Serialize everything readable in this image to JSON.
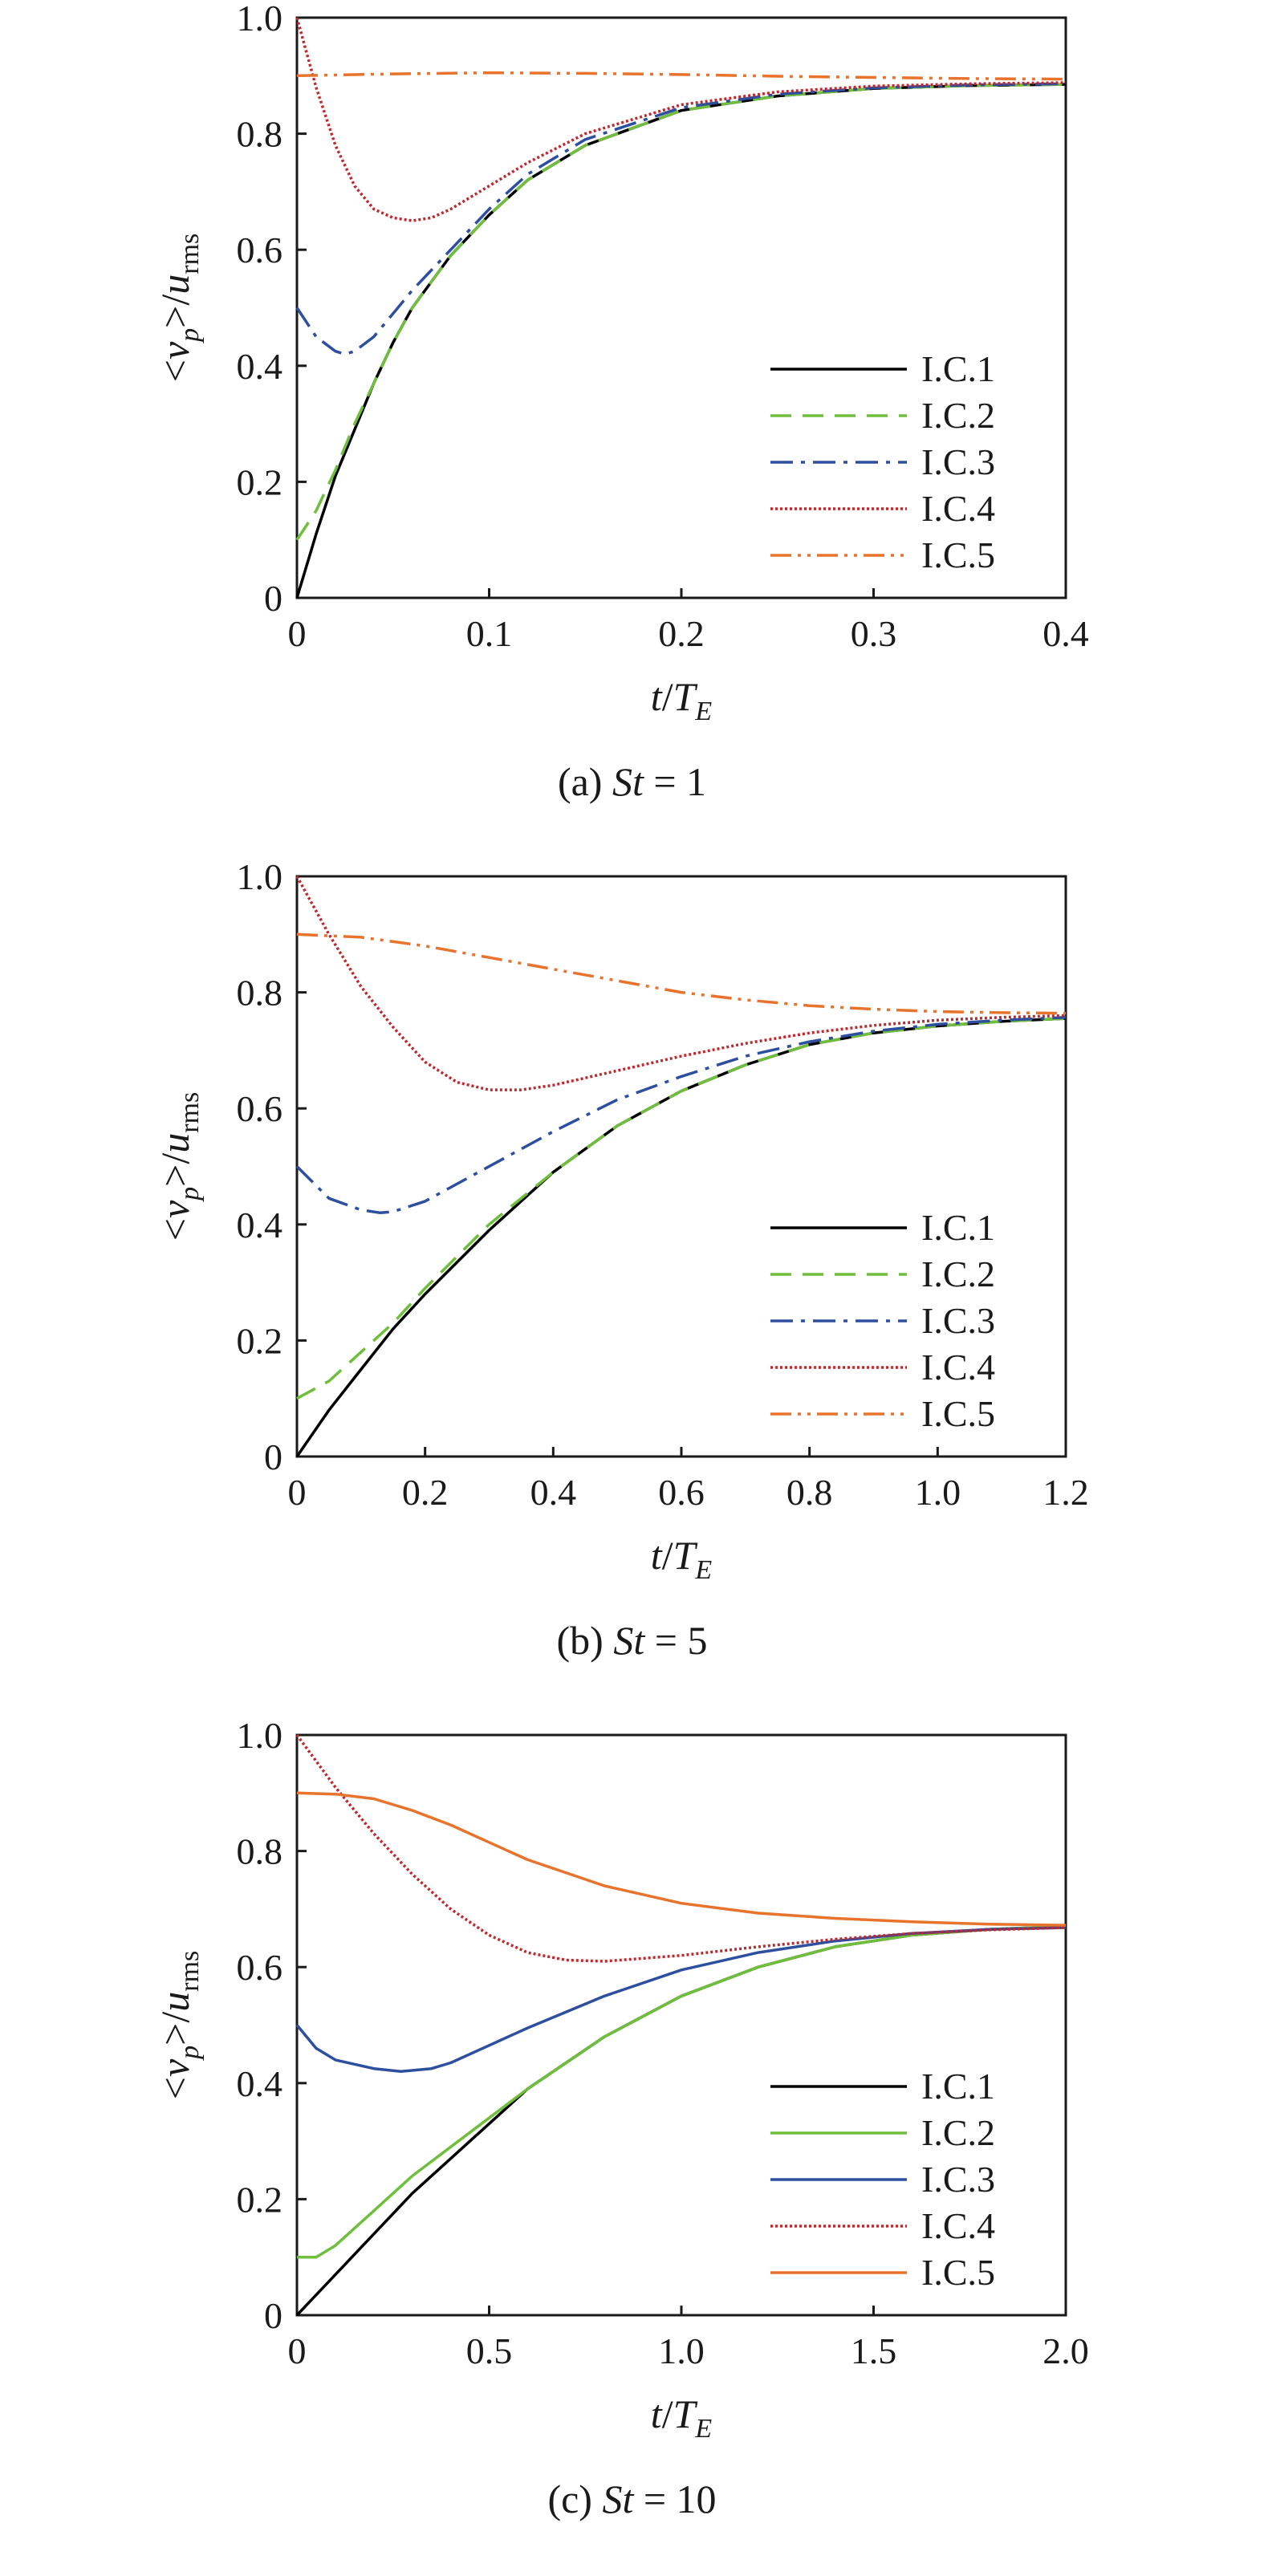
{
  "chart_data": [
    {
      "type": "line",
      "caption_prefix": "(a) ",
      "caption_var": "St",
      "caption_value": " = 1",
      "xlabel_var": "t",
      "xlabel_den": "T",
      "xlabel_sub": "E",
      "ylabel_var": "v",
      "ylabel_var_sub": "p",
      "ylabel_den": "u",
      "ylabel_den_sub": "rms",
      "xlim": [
        0,
        0.4
      ],
      "ylim": [
        0,
        1.0
      ],
      "xticks": [
        "0",
        "0.1",
        "0.2",
        "0.3",
        "0.4"
      ],
      "yticks": [
        "0",
        "0.2",
        "0.4",
        "0.6",
        "0.8",
        "1.0"
      ],
      "legend_position": "lower-right",
      "series": [
        {
          "name": "I.C.1",
          "color": "#000000",
          "style": "solid",
          "x": [
            0,
            0.01,
            0.02,
            0.03,
            0.04,
            0.05,
            0.06,
            0.08,
            0.1,
            0.12,
            0.15,
            0.2,
            0.25,
            0.3,
            0.35,
            0.4
          ],
          "y": [
            0,
            0.11,
            0.21,
            0.29,
            0.37,
            0.44,
            0.5,
            0.59,
            0.66,
            0.72,
            0.78,
            0.84,
            0.865,
            0.878,
            0.883,
            0.885
          ]
        },
        {
          "name": "I.C.2",
          "color": "#6fbf3c",
          "style": "dashed",
          "x": [
            0,
            0.01,
            0.02,
            0.03,
            0.04,
            0.05,
            0.06,
            0.08,
            0.1,
            0.12,
            0.15,
            0.2,
            0.25,
            0.3,
            0.35,
            0.4
          ],
          "y": [
            0.1,
            0.15,
            0.22,
            0.3,
            0.37,
            0.44,
            0.5,
            0.59,
            0.66,
            0.72,
            0.78,
            0.84,
            0.865,
            0.878,
            0.883,
            0.885
          ]
        },
        {
          "name": "I.C.3",
          "color": "#2e4fa0",
          "style": "dashdot",
          "x": [
            0,
            0.01,
            0.02,
            0.025,
            0.03,
            0.04,
            0.05,
            0.06,
            0.08,
            0.1,
            0.12,
            0.15,
            0.2,
            0.25,
            0.3,
            0.35,
            0.4
          ],
          "y": [
            0.5,
            0.45,
            0.425,
            0.42,
            0.425,
            0.45,
            0.49,
            0.53,
            0.6,
            0.67,
            0.73,
            0.79,
            0.845,
            0.868,
            0.879,
            0.884,
            0.886
          ]
        },
        {
          "name": "I.C.4",
          "color": "#c0282e",
          "style": "dotted",
          "x": [
            0,
            0.01,
            0.02,
            0.03,
            0.04,
            0.05,
            0.06,
            0.07,
            0.08,
            0.1,
            0.12,
            0.15,
            0.2,
            0.25,
            0.3,
            0.35,
            0.4
          ],
          "y": [
            1.0,
            0.88,
            0.78,
            0.71,
            0.67,
            0.655,
            0.65,
            0.655,
            0.67,
            0.71,
            0.75,
            0.8,
            0.85,
            0.872,
            0.882,
            0.886,
            0.888
          ]
        },
        {
          "name": "I.C.5",
          "color": "#e8732d",
          "style": "dashdotdot",
          "x": [
            0,
            0.05,
            0.1,
            0.15,
            0.2,
            0.25,
            0.3,
            0.35,
            0.4
          ],
          "y": [
            0.9,
            0.903,
            0.905,
            0.904,
            0.902,
            0.899,
            0.897,
            0.895,
            0.894
          ]
        }
      ]
    },
    {
      "type": "line",
      "caption_prefix": "(b) ",
      "caption_var": "St",
      "caption_value": " = 5",
      "xlabel_var": "t",
      "xlabel_den": "T",
      "xlabel_sub": "E",
      "ylabel_var": "v",
      "ylabel_var_sub": "p",
      "ylabel_den": "u",
      "ylabel_den_sub": "rms",
      "xlim": [
        0,
        1.2
      ],
      "ylim": [
        0,
        1.0
      ],
      "xticks": [
        "0",
        "0.2",
        "0.4",
        "0.6",
        "0.8",
        "1.0",
        "1.2"
      ],
      "yticks": [
        "0",
        "0.2",
        "0.4",
        "0.6",
        "0.8",
        "1.0"
      ],
      "legend_position": "lower-right",
      "series": [
        {
          "name": "I.C.1",
          "color": "#000000",
          "style": "solid",
          "x": [
            0,
            0.05,
            0.1,
            0.15,
            0.2,
            0.3,
            0.4,
            0.5,
            0.6,
            0.7,
            0.8,
            0.9,
            1.0,
            1.1,
            1.2
          ],
          "y": [
            0,
            0.08,
            0.15,
            0.22,
            0.28,
            0.39,
            0.49,
            0.57,
            0.63,
            0.675,
            0.71,
            0.73,
            0.742,
            0.75,
            0.755
          ]
        },
        {
          "name": "I.C.2",
          "color": "#6fbf3c",
          "style": "dashed",
          "x": [
            0,
            0.05,
            0.1,
            0.15,
            0.2,
            0.3,
            0.4,
            0.5,
            0.6,
            0.7,
            0.8,
            0.9,
            1.0,
            1.1,
            1.2
          ],
          "y": [
            0.1,
            0.13,
            0.18,
            0.23,
            0.29,
            0.4,
            0.49,
            0.57,
            0.63,
            0.675,
            0.71,
            0.73,
            0.742,
            0.75,
            0.755
          ]
        },
        {
          "name": "I.C.3",
          "color": "#2e4fa0",
          "style": "dashdot",
          "x": [
            0,
            0.05,
            0.1,
            0.13,
            0.15,
            0.2,
            0.3,
            0.4,
            0.5,
            0.6,
            0.7,
            0.8,
            0.9,
            1.0,
            1.1,
            1.2
          ],
          "y": [
            0.5,
            0.445,
            0.425,
            0.42,
            0.422,
            0.44,
            0.5,
            0.56,
            0.615,
            0.655,
            0.69,
            0.715,
            0.733,
            0.745,
            0.752,
            0.757
          ]
        },
        {
          "name": "I.C.4",
          "color": "#c0282e",
          "style": "dotted",
          "x": [
            0,
            0.05,
            0.1,
            0.15,
            0.2,
            0.25,
            0.3,
            0.35,
            0.4,
            0.5,
            0.6,
            0.7,
            0.8,
            0.9,
            1.0,
            1.1,
            1.2
          ],
          "y": [
            1.0,
            0.9,
            0.81,
            0.74,
            0.68,
            0.645,
            0.632,
            0.632,
            0.64,
            0.665,
            0.69,
            0.712,
            0.73,
            0.743,
            0.752,
            0.757,
            0.76
          ]
        },
        {
          "name": "I.C.5",
          "color": "#e8732d",
          "style": "dashdotdot",
          "x": [
            0,
            0.1,
            0.2,
            0.3,
            0.4,
            0.5,
            0.6,
            0.7,
            0.8,
            0.9,
            1.0,
            1.1,
            1.2
          ],
          "y": [
            0.9,
            0.895,
            0.88,
            0.86,
            0.84,
            0.82,
            0.8,
            0.787,
            0.777,
            0.771,
            0.767,
            0.765,
            0.764
          ]
        }
      ]
    },
    {
      "type": "line",
      "caption_prefix": "(c) ",
      "caption_var": "St",
      "caption_value": " = 10",
      "xlabel_var": "t",
      "xlabel_den": "T",
      "xlabel_sub": "E",
      "ylabel_var": "v",
      "ylabel_var_sub": "p",
      "ylabel_den": "u",
      "ylabel_den_sub": "rms",
      "xlim": [
        0,
        2.0
      ],
      "ylim": [
        0,
        1.0
      ],
      "xticks": [
        "0",
        "0.5",
        "1.0",
        "1.5",
        "2.0"
      ],
      "yticks": [
        "0",
        "0.2",
        "0.4",
        "0.6",
        "0.8",
        "1.0"
      ],
      "legend_position": "lower-right",
      "series": [
        {
          "name": "I.C.1",
          "color": "#000000",
          "style": "solid",
          "x": [
            0,
            0.1,
            0.2,
            0.3,
            0.4,
            0.5,
            0.6,
            0.8,
            1.0,
            1.2,
            1.4,
            1.6,
            1.8,
            2.0
          ],
          "y": [
            0,
            0.07,
            0.14,
            0.21,
            0.27,
            0.33,
            0.39,
            0.48,
            0.55,
            0.6,
            0.635,
            0.655,
            0.665,
            0.67
          ]
        },
        {
          "name": "I.C.2",
          "color": "#6fbf3c",
          "style": "solid",
          "x": [
            0,
            0.05,
            0.1,
            0.2,
            0.3,
            0.4,
            0.5,
            0.6,
            0.8,
            1.0,
            1.2,
            1.4,
            1.6,
            1.8,
            2.0
          ],
          "y": [
            0.1,
            0.1,
            0.12,
            0.18,
            0.24,
            0.29,
            0.34,
            0.39,
            0.48,
            0.55,
            0.6,
            0.635,
            0.655,
            0.665,
            0.67
          ]
        },
        {
          "name": "I.C.3",
          "color": "#2e4fa0",
          "style": "solid",
          "x": [
            0,
            0.05,
            0.1,
            0.2,
            0.27,
            0.35,
            0.4,
            0.5,
            0.6,
            0.8,
            1.0,
            1.2,
            1.4,
            1.6,
            1.8,
            2.0
          ],
          "y": [
            0.5,
            0.46,
            0.44,
            0.425,
            0.42,
            0.425,
            0.435,
            0.465,
            0.495,
            0.55,
            0.595,
            0.625,
            0.645,
            0.658,
            0.665,
            0.668
          ]
        },
        {
          "name": "I.C.4",
          "color": "#c0282e",
          "style": "dotted",
          "x": [
            0,
            0.1,
            0.2,
            0.3,
            0.4,
            0.5,
            0.6,
            0.7,
            0.8,
            1.0,
            1.2,
            1.4,
            1.6,
            1.8,
            2.0
          ],
          "y": [
            1.0,
            0.91,
            0.83,
            0.76,
            0.7,
            0.655,
            0.625,
            0.612,
            0.61,
            0.62,
            0.635,
            0.648,
            0.658,
            0.664,
            0.668
          ]
        },
        {
          "name": "I.C.5",
          "color": "#e8732d",
          "style": "solid",
          "x": [
            0,
            0.1,
            0.2,
            0.3,
            0.4,
            0.5,
            0.6,
            0.8,
            1.0,
            1.2,
            1.4,
            1.6,
            1.8,
            2.0
          ],
          "y": [
            0.9,
            0.898,
            0.89,
            0.87,
            0.845,
            0.815,
            0.785,
            0.74,
            0.71,
            0.693,
            0.684,
            0.678,
            0.674,
            0.672
          ]
        }
      ]
    }
  ]
}
